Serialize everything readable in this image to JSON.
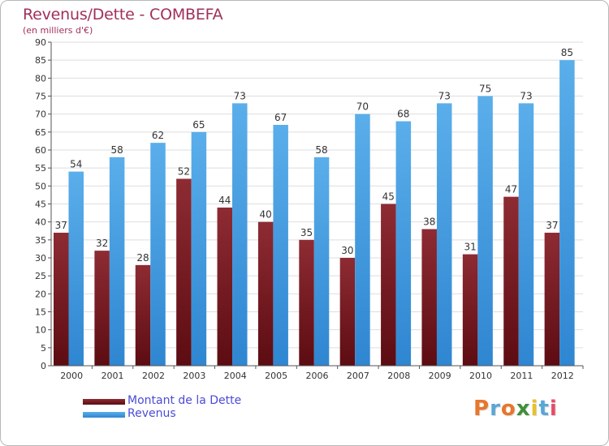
{
  "chart_data": {
    "type": "bar",
    "title": "Revenus/Dette - COMBEFA",
    "subtitle": "(en milliers d'€)",
    "xlabel": "",
    "ylabel": "",
    "ylim": [
      0,
      90
    ],
    "yticks": [
      "0",
      "5",
      "10",
      "15",
      "20",
      "25",
      "30",
      "35",
      "40",
      "45",
      "50",
      "55",
      "60",
      "65",
      "70",
      "75",
      "80",
      "85",
      "90"
    ],
    "grid": true,
    "legend_position": "bottom-left",
    "categories": [
      "2000",
      "2001",
      "2002",
      "2003",
      "2004",
      "2005",
      "2006",
      "2007",
      "2008",
      "2009",
      "2010",
      "2011",
      "2012"
    ],
    "series": [
      {
        "name": "Montant de la Dette",
        "color": "#7a1a22",
        "values": [
          37,
          32,
          28,
          52,
          44,
          40,
          35,
          30,
          45,
          38,
          31,
          47,
          37
        ]
      },
      {
        "name": "Revenus",
        "color": "#3f9be3",
        "values": [
          54,
          58,
          62,
          65,
          73,
          67,
          58,
          70,
          68,
          73,
          75,
          73,
          85
        ]
      }
    ]
  },
  "branding": {
    "logo_text": "Proxiti",
    "logo_colors": [
      "#e8762b",
      "#58a7d6",
      "#e8762b",
      "#3f8f3a",
      "#e8c02b",
      "#58a7d6",
      "#e84b6b"
    ]
  }
}
